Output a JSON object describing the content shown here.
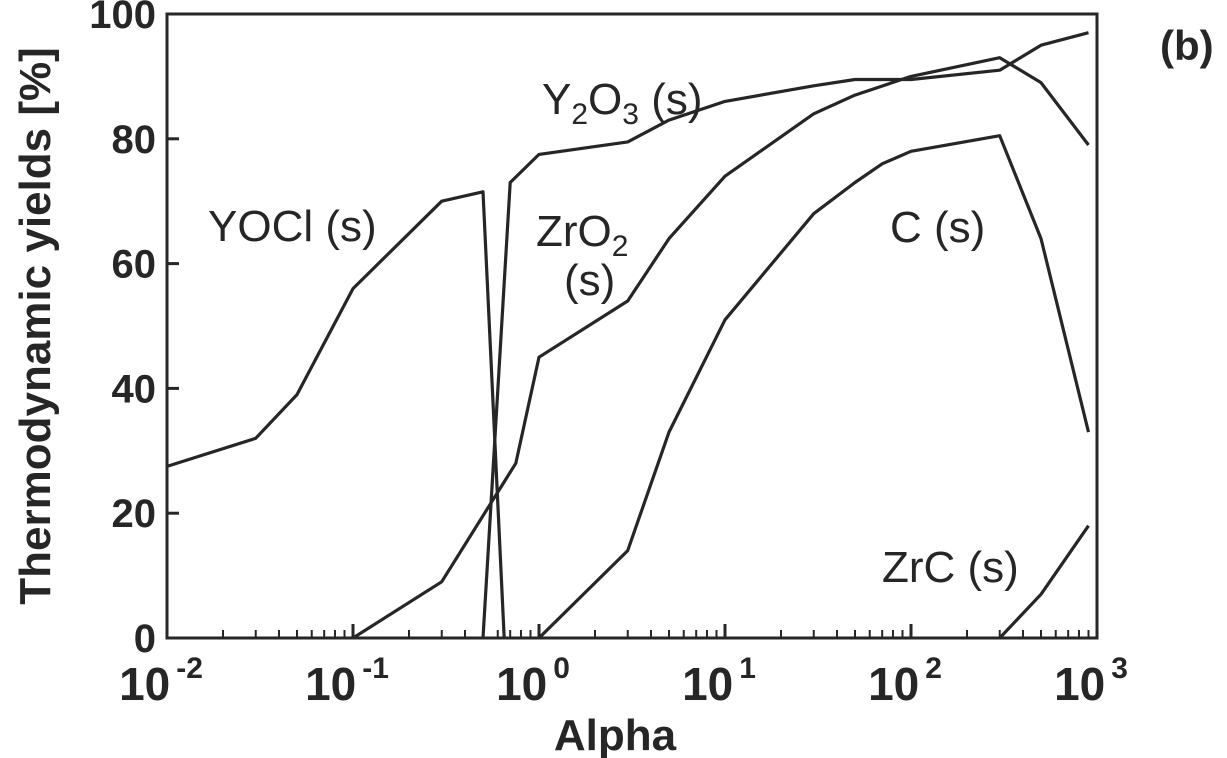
{
  "chart_data": {
    "type": "line",
    "panel_label": "(b)",
    "xlabel": "Alpha",
    "ylabel": "Thermodynamic yields [%]",
    "xscale": "log",
    "xlim": [
      0.01,
      1000
    ],
    "ylim": [
      0,
      100
    ],
    "grid": false,
    "legend": "none",
    "y_ticks": [
      "0",
      "20",
      "40",
      "60",
      "80",
      "100"
    ],
    "x_ticks": [
      {
        "base": "10",
        "exp": "-2",
        "value": 0.01
      },
      {
        "base": "10",
        "exp": "-1",
        "value": 0.1
      },
      {
        "base": "10",
        "exp": "0",
        "value": 1
      },
      {
        "base": "10",
        "exp": "1",
        "value": 10
      },
      {
        "base": "10",
        "exp": "2",
        "value": 100
      },
      {
        "base": "10",
        "exp": "3",
        "value": 1000
      }
    ],
    "series": [
      {
        "key": "yocl",
        "name": "YOCl (s)",
        "points": [
          [
            0.01,
            27.5
          ],
          [
            0.03,
            32
          ],
          [
            0.05,
            39
          ],
          [
            0.1,
            56
          ],
          [
            0.3,
            70
          ],
          [
            0.5,
            71.5
          ],
          [
            0.65,
            0
          ]
        ]
      },
      {
        "key": "y2o3",
        "name": "Y2O3 (s)",
        "name_parts": {
          "main": "Y",
          "sub1": "2",
          "mid": "O",
          "sub2": "3",
          "tail": " (s)"
        },
        "points": [
          [
            0.5,
            0
          ],
          [
            0.7,
            73
          ],
          [
            1,
            77.5
          ],
          [
            3,
            79.5
          ],
          [
            5,
            83
          ],
          [
            10,
            86
          ],
          [
            30,
            88.5
          ],
          [
            50,
            89.5
          ],
          [
            100,
            89.5
          ],
          [
            300,
            91
          ],
          [
            500,
            95
          ],
          [
            900,
            97
          ]
        ]
      },
      {
        "key": "zro2",
        "name": "ZrO2 (s)",
        "name_parts": {
          "main": "ZrO",
          "sub": "2",
          "line2": "(s)"
        },
        "points": [
          [
            0.1,
            0
          ],
          [
            0.3,
            9
          ],
          [
            0.75,
            28
          ],
          [
            1,
            45
          ],
          [
            3,
            54
          ],
          [
            5,
            64
          ],
          [
            10,
            74
          ],
          [
            30,
            84
          ],
          [
            50,
            87
          ],
          [
            100,
            90
          ],
          [
            300,
            93
          ],
          [
            500,
            89
          ],
          [
            900,
            79
          ]
        ]
      },
      {
        "key": "c",
        "name": "C (s)",
        "points": [
          [
            1,
            0
          ],
          [
            3,
            14
          ],
          [
            5,
            33
          ],
          [
            10,
            51
          ],
          [
            30,
            68
          ],
          [
            50,
            73
          ],
          [
            70,
            76
          ],
          [
            100,
            78
          ],
          [
            300,
            80.5
          ],
          [
            500,
            64
          ],
          [
            900,
            33
          ]
        ]
      },
      {
        "key": "zrc",
        "name": "ZrC (s)",
        "points": [
          [
            300,
            0
          ],
          [
            500,
            7
          ],
          [
            900,
            18
          ]
        ]
      }
    ]
  }
}
